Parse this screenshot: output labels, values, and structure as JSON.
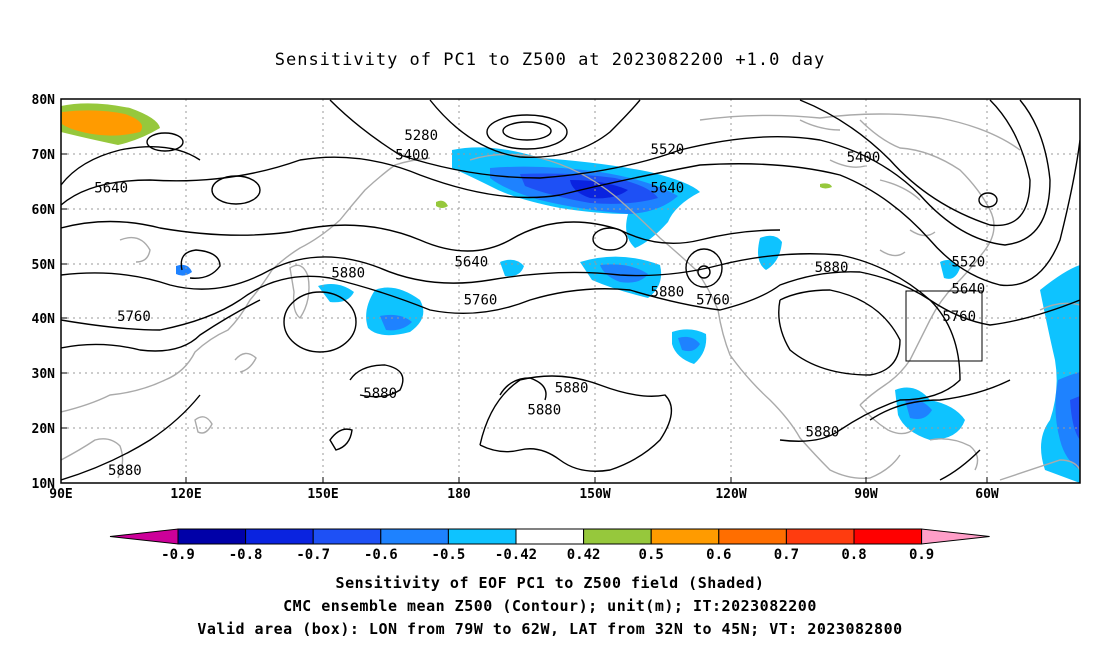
{
  "title": "Sensitivity of PC1 to Z500 at 2023082200 +1.0 day",
  "lat_labels": [
    "80N",
    "70N",
    "60N",
    "50N",
    "40N",
    "30N",
    "20N",
    "10N"
  ],
  "lon_labels": [
    "90E",
    "120E",
    "150E",
    "180",
    "150W",
    "120W",
    "90W",
    "60W"
  ],
  "contour_labels": [
    {
      "text": "5280",
      "lon": 169,
      "lat": 72.5
    },
    {
      "text": "5400",
      "lon": 167,
      "lat": 69.0
    },
    {
      "text": "5520",
      "lon": 223,
      "lat": 70.0
    },
    {
      "text": "5640",
      "lon": 223,
      "lat": 63.0
    },
    {
      "text": "5400",
      "lon": 266,
      "lat": 68.5
    },
    {
      "text": "5640",
      "lon": 101,
      "lat": 63.0
    },
    {
      "text": "5520",
      "lon": 289,
      "lat": 49.5
    },
    {
      "text": "5640",
      "lon": 180,
      "lat": 49.5
    },
    {
      "text": "5880",
      "lon": 153,
      "lat": 47.5
    },
    {
      "text": "5880",
      "lon": 223,
      "lat": 44.0
    },
    {
      "text": "5880",
      "lon": 259,
      "lat": 48.5
    },
    {
      "text": "5640",
      "lon": 289,
      "lat": 44.5
    },
    {
      "text": "5760",
      "lon": 182,
      "lat": 42.5
    },
    {
      "text": "5760",
      "lon": 233,
      "lat": 42.5
    },
    {
      "text": "5760",
      "lon": 106,
      "lat": 39.5
    },
    {
      "text": "5760",
      "lon": 287,
      "lat": 39.5
    },
    {
      "text": "5880",
      "lon": 160,
      "lat": 25.5
    },
    {
      "text": "5880",
      "lon": 202,
      "lat": 26.5
    },
    {
      "text": "5880",
      "lon": 196,
      "lat": 22.5
    },
    {
      "text": "5880",
      "lon": 257,
      "lat": 18.5
    },
    {
      "text": "5880",
      "lon": 104,
      "lat": 11.5
    }
  ],
  "colorbar": {
    "labels": [
      "-0.9",
      "-0.8",
      "-0.7",
      "-0.6",
      "-0.5",
      "-0.42",
      "0.42",
      "0.5",
      "0.6",
      "0.7",
      "0.8",
      "0.9"
    ],
    "colors": [
      "#0000a8",
      "#0a23e0",
      "#1e50f5",
      "#1e82ff",
      "#0ec3ff",
      "#ffffff",
      "#96c83c",
      "#ff9b00",
      "#ff6e00",
      "#ff3c0f",
      "#ff0000"
    ],
    "low_end": "#cc0099",
    "high_end": "#ff9ec8"
  },
  "captions": {
    "line1": "Sensitivity of EOF PC1 to Z500 field (Shaded)",
    "line2": "CMC ensemble mean Z500 (Contour); unit(m); IT:2023082200",
    "line3": "Valid area (box): LON from 79W to 62W, LAT from 32N to 45N; VT: 2023082800"
  }
}
